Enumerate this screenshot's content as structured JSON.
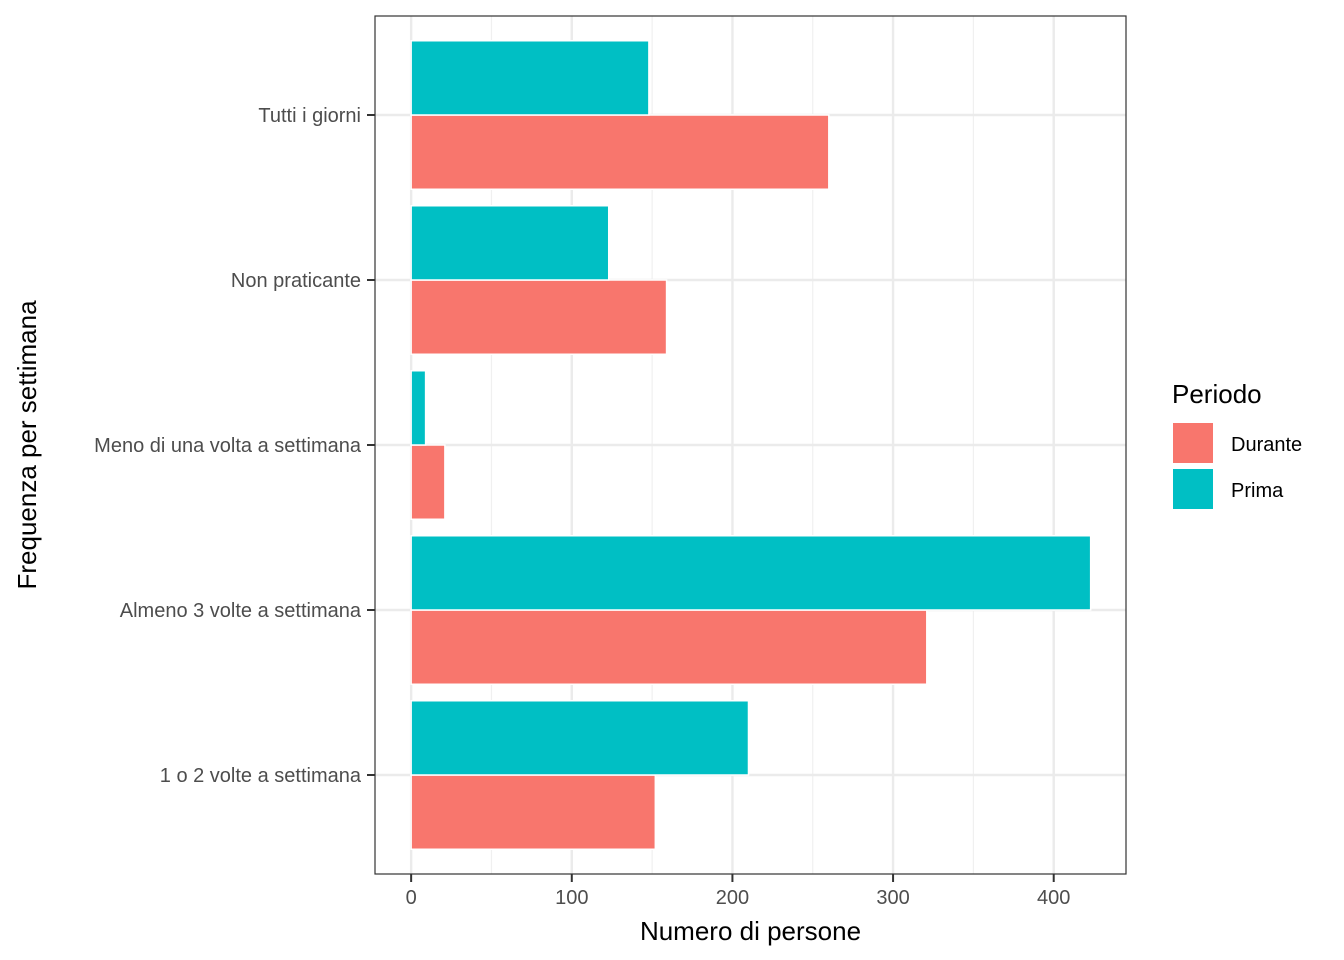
{
  "chart_data": {
    "type": "bar",
    "orientation": "horizontal",
    "categories": [
      "1 o 2 volte a settimana",
      "Almeno 3 volte a settimana",
      "Meno di una volta a settimana",
      "Non praticante",
      "Tutti i giorni"
    ],
    "series": [
      {
        "name": "Durante",
        "color": "#F8766D",
        "values": [
          152,
          321,
          21,
          159,
          260
        ]
      },
      {
        "name": "Prima",
        "color": "#00BFC4",
        "values": [
          210,
          423,
          9,
          123,
          148
        ]
      }
    ],
    "xlabel": "Numero di persone",
    "ylabel": "Frequenza per settimana",
    "xlim": [
      -22.5,
      445
    ],
    "xticks": [
      0,
      100,
      200,
      300,
      400
    ],
    "grid": true,
    "legend": {
      "title": "Periodo",
      "position": "right"
    }
  }
}
